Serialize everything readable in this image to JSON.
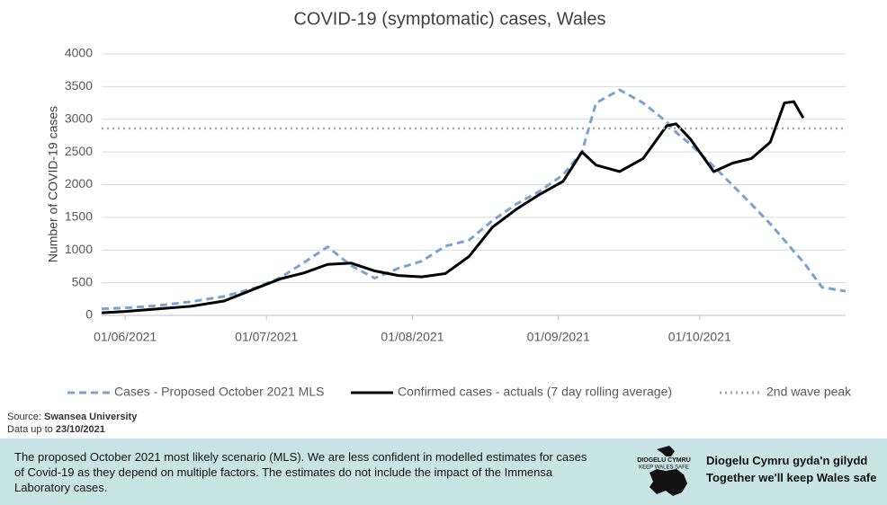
{
  "chart_data": {
    "type": "line",
    "title": "COVID-19 (symptomatic) cases, Wales",
    "y_label": "Number of COVID-19 cases",
    "x": [
      "2021-05-27",
      "2021-06-01",
      "2021-06-08",
      "2021-06-15",
      "2021-06-22",
      "2021-06-29",
      "2021-07-04",
      "2021-07-09",
      "2021-07-14",
      "2021-07-19",
      "2021-07-24",
      "2021-07-29",
      "2021-08-03",
      "2021-08-08",
      "2021-08-13",
      "2021-08-18",
      "2021-08-23",
      "2021-08-28",
      "2021-09-02",
      "2021-09-06",
      "2021-09-09",
      "2021-09-14",
      "2021-09-19",
      "2021-09-24",
      "2021-09-26",
      "2021-09-29",
      "2021-10-04",
      "2021-10-08",
      "2021-10-12",
      "2021-10-16",
      "2021-10-19",
      "2021-10-21",
      "2021-10-23",
      "2021-10-27",
      "2021-11-01"
    ],
    "series": [
      {
        "name": "Cases - Proposed October 2021 MLS",
        "color": "#7ba3d0",
        "style": "dashed",
        "values": [
          100,
          115,
          150,
          210,
          290,
          430,
          580,
          810,
          1050,
          760,
          570,
          720,
          830,
          1060,
          1150,
          1450,
          1700,
          1900,
          2150,
          2500,
          3250,
          3450,
          3250,
          2960,
          2800,
          2620,
          2280,
          1990,
          1700,
          1400,
          1150,
          980,
          820,
          430,
          370
        ]
      },
      {
        "name": "Confirmed cases - actuals (7 day rolling average)",
        "color": "#000000",
        "style": "solid",
        "values": [
          40,
          60,
          100,
          140,
          220,
          420,
          560,
          650,
          780,
          800,
          680,
          610,
          590,
          640,
          900,
          1350,
          1620,
          1850,
          2050,
          2500,
          2300,
          2200,
          2400,
          2900,
          2930,
          2700,
          2200,
          2330,
          2400,
          2650,
          3250,
          3270,
          3020,
          null,
          null
        ]
      }
    ],
    "hline": {
      "name": "2nd wave peak",
      "value": 2860,
      "color": "#a6a6a6"
    },
    "xlim": [
      "2021-05-27",
      "2021-11-01"
    ],
    "xticks": [
      {
        "value": "2021-06-01",
        "label": "01/06/2021"
      },
      {
        "value": "2021-07-01",
        "label": "01/07/2021"
      },
      {
        "value": "2021-08-01",
        "label": "01/08/2021"
      },
      {
        "value": "2021-09-01",
        "label": "01/09/2021"
      },
      {
        "value": "2021-10-01",
        "label": "01/10/2021"
      }
    ],
    "ylim": [
      0,
      4000
    ],
    "yticks": [
      0,
      500,
      1000,
      1500,
      2000,
      2500,
      3000,
      3500,
      4000
    ],
    "grid": true,
    "legend": "bottom"
  },
  "source": {
    "label": "Source:",
    "value": "Swansea University"
  },
  "data_date": {
    "label": "Data up to",
    "value": "23/10/2021"
  },
  "footer": {
    "note": "The proposed October 2021 most likely scenario (MLS). We are less confident in modelled estimates for cases of Covid-19 as they depend on multiple factors. The estimates do not include the impact of the Immensa Laboratory cases.",
    "logo_top": "DIOGELU CYMRU",
    "logo_bottom": "KEEP WALES SAFE",
    "tagline_cy": "Diogelu Cymru gyda'n gilydd",
    "tagline_en": "Together we'll keep Wales safe"
  }
}
